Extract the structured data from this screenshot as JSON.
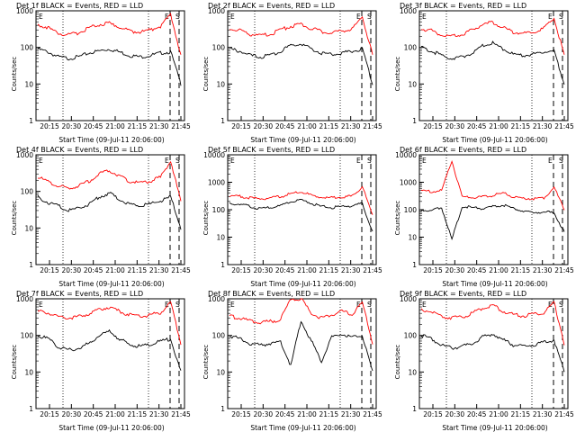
{
  "chart_data": [
    {
      "type": "line",
      "title": "Det 1f BLACK = Events, RED = LLD",
      "xlabel": "Start Time (09-Jul-11 20:06:00)",
      "ylabel": "Counts/sec",
      "log_y": true,
      "ylim": [
        1,
        1000
      ],
      "yticks": [
        "1",
        "10",
        "100",
        "1000"
      ],
      "xticks": [
        "20:15",
        "20:30",
        "20:45",
        "21:00",
        "21:15",
        "21:30",
        "21:45"
      ],
      "markers": [
        "E",
        "E",
        "S"
      ],
      "series": [
        {
          "name": "Events",
          "color": "#000000",
          "values": [
            90,
            75,
            55,
            50,
            55,
            70,
            80,
            90,
            75,
            60,
            55,
            60,
            70,
            75,
            10
          ]
        },
        {
          "name": "LLD",
          "color": "#ff0000",
          "values": [
            420,
            350,
            240,
            220,
            250,
            340,
            420,
            450,
            360,
            280,
            260,
            300,
            380,
            800,
            60
          ]
        }
      ]
    },
    {
      "type": "line",
      "title": "Det 2f BLACK = Events, RED = LLD",
      "xlabel": "Start Time (09-Jul-11 20:06:00)",
      "ylabel": "Counts/sec",
      "log_y": true,
      "ylim": [
        1,
        1000
      ],
      "yticks": [
        "1",
        "10",
        "100",
        "1000"
      ],
      "xticks": [
        "20:15",
        "20:30",
        "20:45",
        "21:00",
        "21:15",
        "21:30",
        "21:45"
      ],
      "markers": [
        "E",
        "E",
        "S"
      ],
      "series": [
        {
          "name": "Events",
          "color": "#000000",
          "values": [
            90,
            80,
            60,
            55,
            60,
            80,
            110,
            130,
            90,
            70,
            65,
            70,
            80,
            90,
            10
          ]
        },
        {
          "name": "LLD",
          "color": "#ff0000",
          "values": [
            330,
            300,
            230,
            210,
            230,
            300,
            380,
            420,
            330,
            270,
            250,
            280,
            320,
            700,
            60
          ]
        }
      ]
    },
    {
      "type": "line",
      "title": "Det 3f BLACK = Events, RED = LLD",
      "xlabel": "Start Time (09-Jul-11 20:06:00)",
      "ylabel": "Counts/sec",
      "log_y": true,
      "ylim": [
        1,
        1000
      ],
      "yticks": [
        "1",
        "10",
        "100",
        "1000"
      ],
      "xticks": [
        "20:15",
        "20:30",
        "20:45",
        "21:00",
        "21:15",
        "21:30",
        "21:45"
      ],
      "markers": [
        "E",
        "E",
        "S"
      ],
      "series": [
        {
          "name": "Events",
          "color": "#000000",
          "values": [
            100,
            80,
            60,
            50,
            55,
            70,
            110,
            130,
            90,
            65,
            60,
            65,
            75,
            80,
            10
          ]
        },
        {
          "name": "LLD",
          "color": "#ff0000",
          "values": [
            320,
            290,
            220,
            200,
            220,
            300,
            420,
            480,
            350,
            260,
            240,
            270,
            330,
            650,
            60
          ]
        }
      ]
    },
    {
      "type": "line",
      "title": "Det 4f BLACK = Events, RED = LLD",
      "xlabel": "Start Time (09-Jul-11 20:06:00)",
      "ylabel": "Counts/sec",
      "log_y": true,
      "ylim": [
        1,
        1000
      ],
      "yticks": [
        "1",
        "10",
        "100",
        "1000"
      ],
      "xticks": [
        "20:15",
        "20:30",
        "20:45",
        "21:00",
        "21:15",
        "21:30",
        "21:45"
      ],
      "markers": [
        "E",
        "E",
        "S"
      ],
      "series": [
        {
          "name": "Events",
          "color": "#000000",
          "values": [
            70,
            50,
            40,
            30,
            35,
            45,
            70,
            90,
            60,
            45,
            40,
            45,
            55,
            70,
            10
          ]
        },
        {
          "name": "LLD",
          "color": "#ff0000",
          "values": [
            250,
            180,
            140,
            120,
            140,
            190,
            300,
            380,
            260,
            190,
            170,
            190,
            240,
            700,
            50
          ]
        }
      ]
    },
    {
      "type": "line",
      "title": "Det 5f BLACK = Events, RED = LLD",
      "xlabel": "Start Time (09-Jul-11 20:06:00)",
      "ylabel": "Counts/sec",
      "log_y": true,
      "ylim": [
        1,
        10000
      ],
      "yticks": [
        "1",
        "10",
        "100",
        "1000",
        "10000"
      ],
      "xticks": [
        "20:15",
        "20:30",
        "20:45",
        "21:00",
        "21:15",
        "21:30",
        "21:45"
      ],
      "markers": [
        "E",
        "E",
        "S"
      ],
      "series": [
        {
          "name": "Events",
          "color": "#000000",
          "values": [
            170,
            160,
            130,
            110,
            120,
            140,
            190,
            230,
            170,
            130,
            120,
            130,
            140,
            170,
            15
          ]
        },
        {
          "name": "LLD",
          "color": "#ff0000",
          "values": [
            300,
            310,
            270,
            250,
            270,
            300,
            380,
            450,
            330,
            280,
            270,
            290,
            310,
            700,
            60
          ]
        }
      ]
    },
    {
      "type": "line",
      "title": "Det 6f BLACK = Events, RED = LLD",
      "xlabel": "Start Time (09-Jul-11 20:06:00)",
      "ylabel": "Counts/sec",
      "log_y": true,
      "ylim": [
        1,
        10000
      ],
      "yticks": [
        "1",
        "10",
        "100",
        "1000",
        "10000"
      ],
      "xticks": [
        "20:15",
        "20:30",
        "20:45",
        "21:00",
        "21:15",
        "21:30",
        "21:45"
      ],
      "markers": [
        "E",
        "E",
        "S"
      ],
      "series": [
        {
          "name": "Events",
          "color": "#000000",
          "values": [
            100,
            90,
            120,
            8,
            130,
            120,
            110,
            130,
            150,
            110,
            90,
            80,
            80,
            80,
            15
          ]
        },
        {
          "name": "LLD",
          "color": "#ff0000",
          "values": [
            480,
            460,
            500,
            6000,
            300,
            280,
            290,
            330,
            400,
            300,
            260,
            250,
            270,
            650,
            100
          ]
        }
      ]
    },
    {
      "type": "line",
      "title": "Det 7f BLACK = Events, RED = LLD",
      "xlabel": "Start Time (09-Jul-11 20:06:00)",
      "ylabel": "Counts/sec",
      "log_y": true,
      "ylim": [
        1,
        1000
      ],
      "yticks": [
        "1",
        "10",
        "100",
        "1000"
      ],
      "xticks": [
        "20:15",
        "20:30",
        "20:45",
        "21:00",
        "21:15",
        "21:30",
        "21:45"
      ],
      "markers": [
        "E",
        "E",
        "S"
      ],
      "series": [
        {
          "name": "Events",
          "color": "#000000",
          "values": [
            100,
            80,
            50,
            40,
            45,
            60,
            100,
            130,
            80,
            55,
            50,
            55,
            70,
            80,
            10
          ]
        },
        {
          "name": "LLD",
          "color": "#ff0000",
          "values": [
            450,
            420,
            330,
            300,
            320,
            400,
            520,
            600,
            450,
            360,
            330,
            360,
            420,
            800,
            60
          ]
        }
      ]
    },
    {
      "type": "line",
      "title": "Det 8f BLACK = Events, RED = LLD",
      "xlabel": "Start Time (09-Jul-11 20:06:00)",
      "ylabel": "Counts/sec",
      "log_y": true,
      "ylim": [
        1,
        1000
      ],
      "yticks": [
        "1",
        "10",
        "100",
        "1000"
      ],
      "xticks": [
        "20:15",
        "20:30",
        "20:45",
        "21:00",
        "21:15",
        "21:30",
        "21:45"
      ],
      "markers": [
        "E",
        "E",
        "S"
      ],
      "series": [
        {
          "name": "Events",
          "color": "#000000",
          "values": [
            100,
            80,
            60,
            55,
            60,
            65,
            15,
            250,
            70,
            20,
            90,
            110,
            90,
            100,
            10
          ]
        },
        {
          "name": "LLD",
          "color": "#ff0000",
          "values": [
            330,
            300,
            250,
            230,
            240,
            270,
            1000,
            1000,
            400,
            300,
            380,
            450,
            380,
            800,
            60
          ]
        }
      ]
    },
    {
      "type": "line",
      "title": "Det 9f BLACK = Events, RED = LLD",
      "xlabel": "Start Time (09-Jul-11 20:06:00)",
      "ylabel": "Counts/sec",
      "log_y": true,
      "ylim": [
        1,
        1000
      ],
      "yticks": [
        "1",
        "10",
        "100",
        "1000"
      ],
      "xticks": [
        "20:15",
        "20:30",
        "20:45",
        "21:00",
        "21:15",
        "21:30",
        "21:45"
      ],
      "markers": [
        "E",
        "E",
        "S"
      ],
      "series": [
        {
          "name": "Events",
          "color": "#000000",
          "values": [
            100,
            80,
            55,
            45,
            50,
            60,
            90,
            110,
            75,
            55,
            50,
            55,
            65,
            75,
            10
          ]
        },
        {
          "name": "LLD",
          "color": "#ff0000",
          "values": [
            500,
            440,
            330,
            300,
            320,
            400,
            560,
            650,
            470,
            370,
            340,
            370,
            430,
            800,
            60
          ]
        }
      ]
    }
  ]
}
